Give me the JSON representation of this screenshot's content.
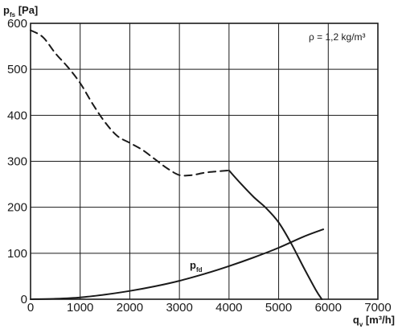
{
  "chart_data": {
    "type": "line",
    "y_axis_label": {
      "main": "p",
      "sub": "fs",
      "unit": " [Pa]"
    },
    "x_axis_label": {
      "main": "q",
      "sub": "v",
      "unit": " [m³/h]"
    },
    "xlim": [
      0,
      7000
    ],
    "ylim": [
      0,
      600
    ],
    "x_ticks": [
      "0",
      "1000",
      "2000",
      "3000",
      "4000",
      "5000",
      "6000",
      "7000"
    ],
    "y_ticks": [
      "0",
      "100",
      "200",
      "300",
      "400",
      "500",
      "600"
    ],
    "grid": true,
    "annotation": "ρ = 1,2 kg/m³",
    "series": [
      {
        "style": "dashed",
        "x": [
          0,
          250,
          500,
          750,
          1000,
          1250,
          1500,
          1750,
          2000,
          2250,
          2500,
          2750,
          3000,
          3250,
          3500,
          3750,
          4000
        ],
        "y": [
          585,
          570,
          535,
          505,
          470,
          425,
          385,
          355,
          340,
          325,
          305,
          285,
          270,
          270,
          275,
          278,
          280
        ]
      },
      {
        "style": "solid",
        "x": [
          4000,
          4250,
          4500,
          4750,
          5000,
          5250,
          5500,
          5750,
          5870
        ],
        "y": [
          280,
          250,
          222,
          198,
          167,
          122,
          70,
          20,
          0
        ]
      },
      {
        "name": "p",
        "name_sub": "fd",
        "style": "solid",
        "x": [
          0,
          500,
          1000,
          1500,
          2000,
          2500,
          3000,
          3500,
          4000,
          4500,
          5000,
          5500,
          5900
        ],
        "y": [
          0,
          1,
          4,
          10,
          18,
          28,
          40,
          55,
          72,
          91,
          112,
          136,
          152
        ]
      }
    ]
  }
}
